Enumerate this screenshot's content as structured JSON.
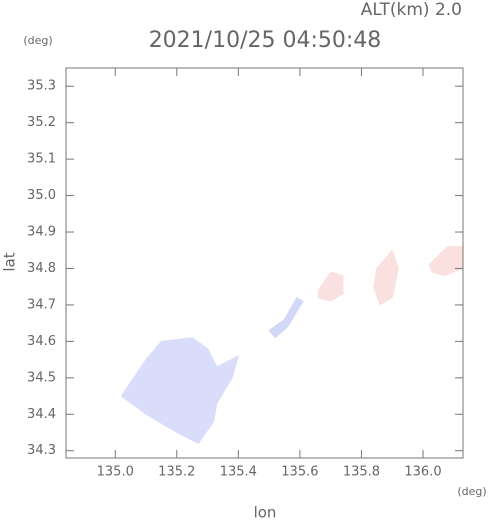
{
  "chart_data": {
    "type": "region",
    "title": "2021/10/25 04:50:48",
    "subtitle": "ALT(km) 2.0",
    "y_unit": "(deg)",
    "x_unit": "(deg)",
    "xlabel": "lon",
    "ylabel": "lat",
    "xlim": [
      134.84,
      136.13
    ],
    "ylim": [
      34.28,
      35.35
    ],
    "xticks": [
      {
        "value": 135,
        "label": "135.0"
      },
      135.2,
      135.4,
      135.6,
      135.8,
      {
        "value": 136,
        "label": "136.0"
      }
    ],
    "yticks": [
      34.3,
      34.4,
      34.5,
      34.6,
      34.7,
      34.8,
      34.9,
      {
        "value": 35,
        "label": "35.0"
      },
      35.1,
      35.2,
      35.3
    ],
    "regions": [
      {
        "color": "#d9ddfa",
        "x": [
          135.02,
          135.1,
          135.15,
          135.25,
          135.3,
          135.33,
          135.4,
          135.38,
          135.33,
          135.32,
          135.27,
          135.2,
          135.1
        ],
        "y": [
          34.45,
          34.55,
          34.6,
          34.61,
          34.58,
          34.53,
          34.56,
          34.5,
          34.43,
          34.38,
          34.32,
          34.35,
          34.4
        ]
      },
      {
        "color": "#d2d8f7",
        "x": [
          135.5,
          135.55,
          135.59,
          135.61,
          135.56,
          135.52
        ],
        "y": [
          34.63,
          34.66,
          34.72,
          34.71,
          34.64,
          34.61
        ]
      },
      {
        "color": "#fbe0e0",
        "x": [
          135.66,
          135.7,
          135.74,
          135.74,
          135.7,
          135.66
        ],
        "y": [
          34.74,
          34.79,
          34.78,
          34.73,
          34.71,
          34.72
        ]
      },
      {
        "color": "#fbe0e0",
        "x": [
          135.85,
          135.9,
          135.92,
          135.9,
          135.86,
          135.84
        ],
        "y": [
          34.8,
          34.85,
          34.8,
          34.72,
          34.7,
          34.75
        ]
      },
      {
        "color": "#fbe0e0",
        "x": [
          136.02,
          136.08,
          136.13,
          136.13,
          136.07,
          136.03
        ],
        "y": [
          34.81,
          34.86,
          34.86,
          34.8,
          34.78,
          34.79
        ]
      }
    ]
  }
}
